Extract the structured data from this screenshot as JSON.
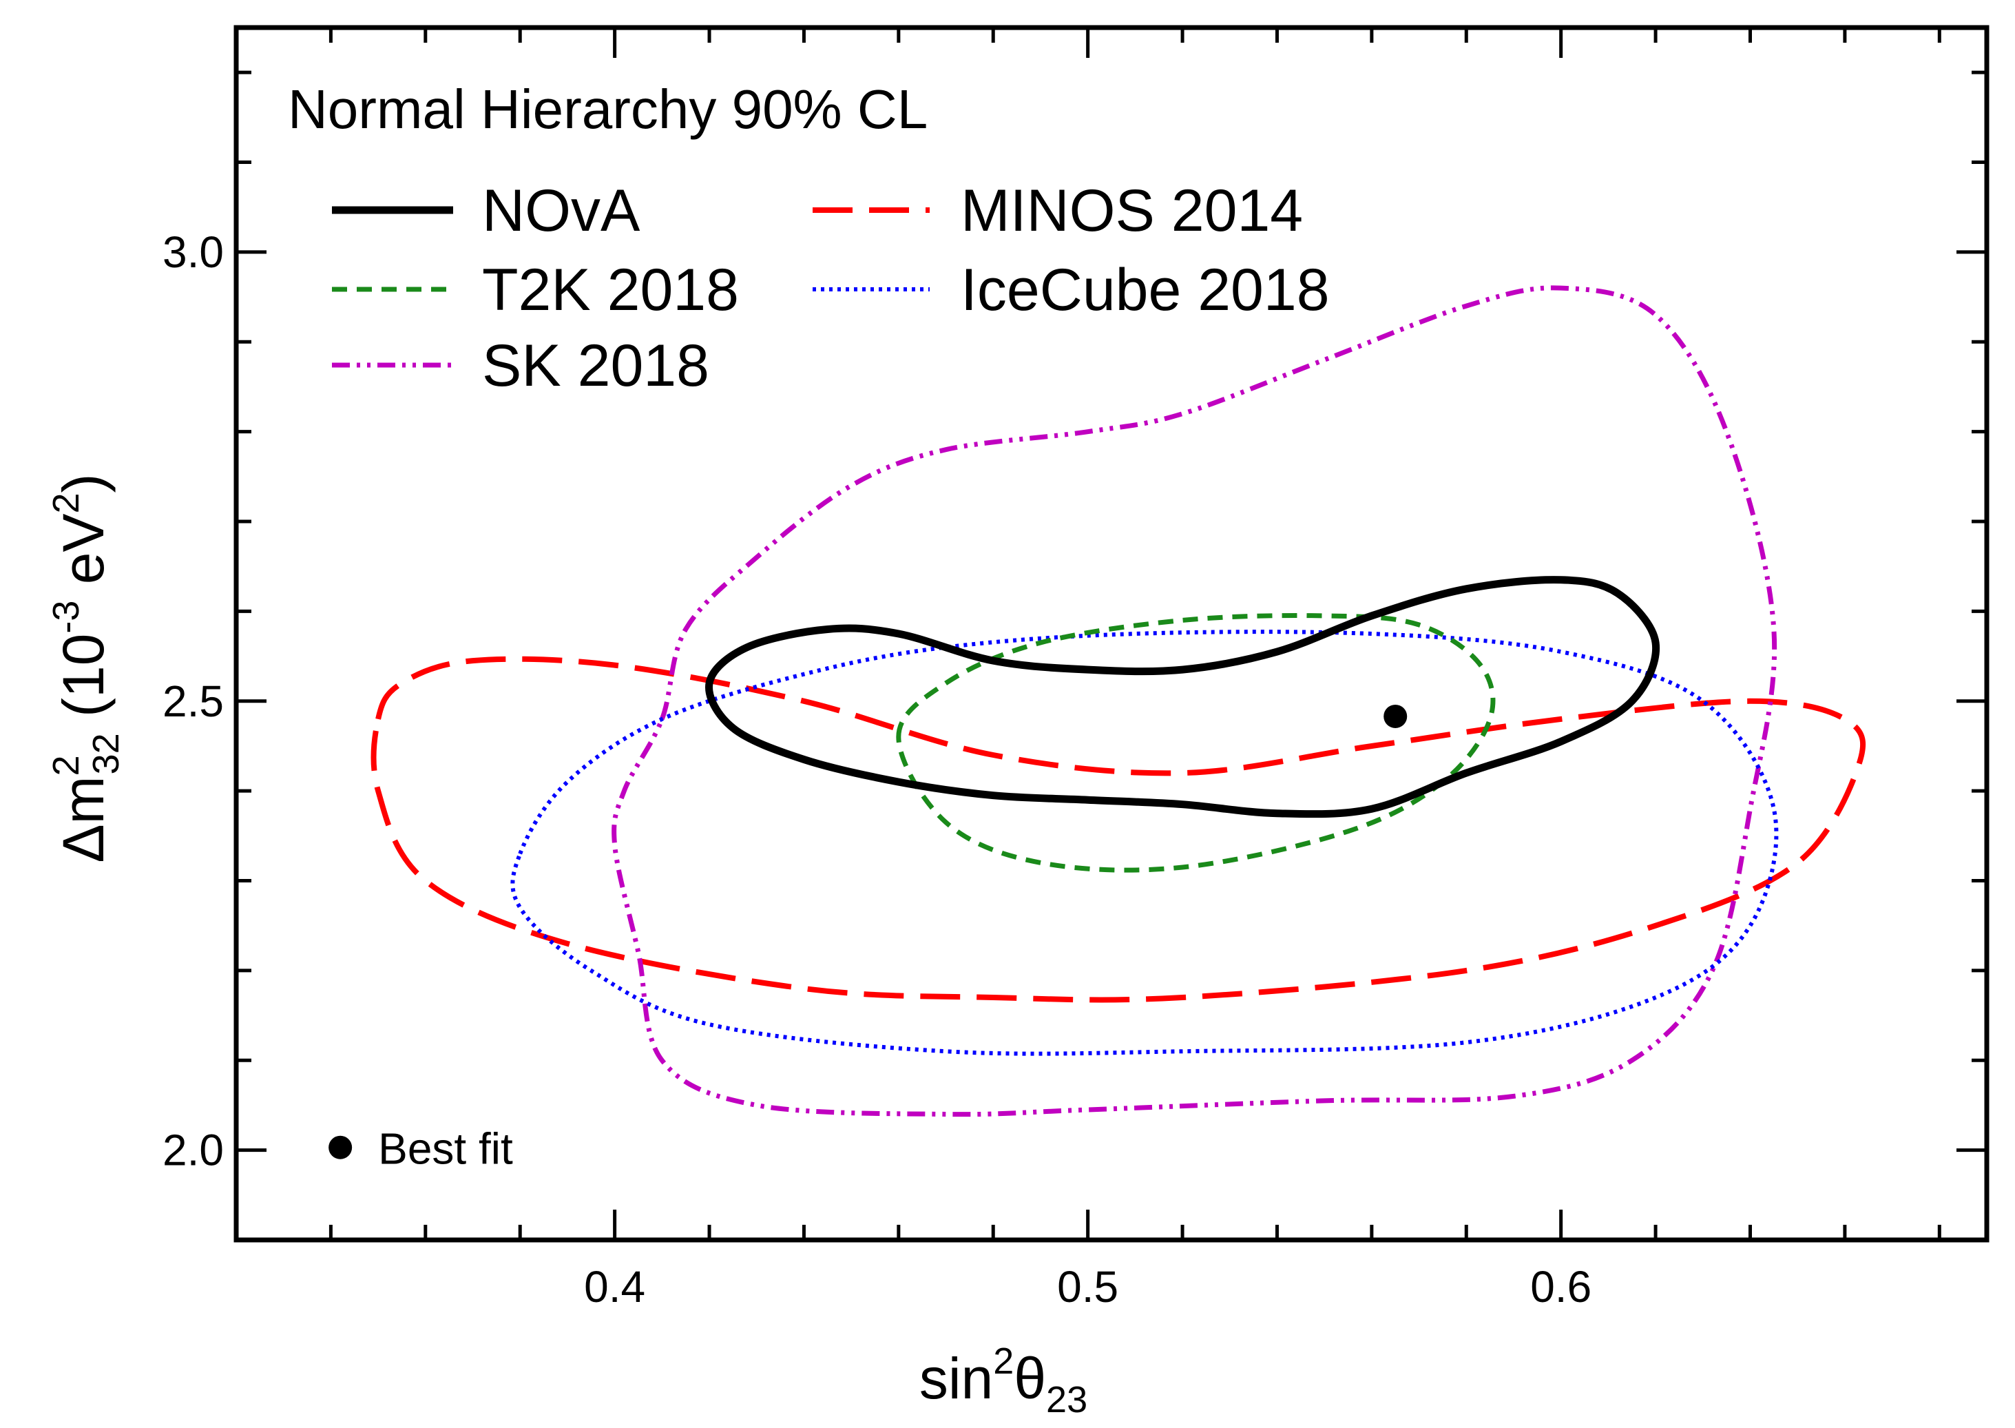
{
  "chart_data": {
    "type": "line",
    "title": "Normal Hierarchy 90% CL",
    "xlabel": {
      "base": "sin",
      "sup": "2",
      "theta": "θ",
      "sub": "23"
    },
    "ylabel": {
      "delta": "Δ",
      "m": "m",
      "sup": "2",
      "sub": "32",
      "units_open": " (10",
      "units_exp": "-3",
      "units_mid": " eV",
      "units_exp2": "2",
      "units_close": ")"
    },
    "xlim": [
      0.32,
      0.69
    ],
    "ylim": [
      1.9,
      3.25
    ],
    "x_ticks": [
      "0.4",
      "0.5",
      "0.6"
    ],
    "x_tick_values": [
      0.4,
      0.5,
      0.6
    ],
    "y_ticks": [
      "2.0",
      "2.5",
      "3.0"
    ],
    "y_tick_values": [
      2.0,
      2.5,
      3.0
    ],
    "x_minor_step": 0.02,
    "y_minor_step": 0.1,
    "grid": false,
    "legend_placement": "top-left",
    "series": [
      {
        "name": "NOvA",
        "color": "#000000",
        "style": "solid",
        "closed": true,
        "points": [
          [
            0.42,
            2.52
          ],
          [
            0.428,
            2.56
          ],
          [
            0.445,
            2.58
          ],
          [
            0.46,
            2.575
          ],
          [
            0.48,
            2.545
          ],
          [
            0.5,
            2.535
          ],
          [
            0.52,
            2.535
          ],
          [
            0.54,
            2.555
          ],
          [
            0.56,
            2.595
          ],
          [
            0.58,
            2.625
          ],
          [
            0.6,
            2.635
          ],
          [
            0.612,
            2.62
          ],
          [
            0.62,
            2.565
          ],
          [
            0.615,
            2.5
          ],
          [
            0.6,
            2.455
          ],
          [
            0.58,
            2.42
          ],
          [
            0.56,
            2.38
          ],
          [
            0.54,
            2.375
          ],
          [
            0.52,
            2.385
          ],
          [
            0.5,
            2.39
          ],
          [
            0.48,
            2.395
          ],
          [
            0.46,
            2.41
          ],
          [
            0.44,
            2.435
          ],
          [
            0.425,
            2.47
          ]
        ]
      },
      {
        "name": "T2K 2018",
        "color": "#1a8a1a",
        "style": "dashed",
        "closed": true,
        "points": [
          [
            0.46,
            2.46
          ],
          [
            0.47,
            2.52
          ],
          [
            0.49,
            2.565
          ],
          [
            0.52,
            2.59
          ],
          [
            0.55,
            2.595
          ],
          [
            0.57,
            2.585
          ],
          [
            0.583,
            2.54
          ],
          [
            0.585,
            2.48
          ],
          [
            0.575,
            2.41
          ],
          [
            0.555,
            2.355
          ],
          [
            0.52,
            2.315
          ],
          [
            0.49,
            2.32
          ],
          [
            0.47,
            2.365
          ]
        ]
      },
      {
        "name": "SK 2018",
        "color": "#c000c0",
        "style": "dash-dot-dot",
        "closed": true,
        "points": [
          [
            0.41,
            2.48
          ],
          [
            0.415,
            2.58
          ],
          [
            0.43,
            2.66
          ],
          [
            0.45,
            2.74
          ],
          [
            0.47,
            2.78
          ],
          [
            0.5,
            2.8
          ],
          [
            0.52,
            2.82
          ],
          [
            0.55,
            2.88
          ],
          [
            0.58,
            2.94
          ],
          [
            0.6,
            2.96
          ],
          [
            0.62,
            2.93
          ],
          [
            0.635,
            2.8
          ],
          [
            0.645,
            2.58
          ],
          [
            0.64,
            2.38
          ],
          [
            0.632,
            2.2
          ],
          [
            0.615,
            2.1
          ],
          [
            0.59,
            2.06
          ],
          [
            0.55,
            2.055
          ],
          [
            0.5,
            2.045
          ],
          [
            0.47,
            2.04
          ],
          [
            0.43,
            2.05
          ],
          [
            0.41,
            2.1
          ],
          [
            0.405,
            2.22
          ],
          [
            0.4,
            2.34
          ],
          [
            0.402,
            2.4
          ]
        ]
      },
      {
        "name": "MINOS 2014",
        "color": "#ff0000",
        "style": "long-dashed",
        "closed": true,
        "points": [
          [
            0.35,
            2.48
          ],
          [
            0.355,
            2.52
          ],
          [
            0.37,
            2.545
          ],
          [
            0.4,
            2.54
          ],
          [
            0.44,
            2.5
          ],
          [
            0.48,
            2.44
          ],
          [
            0.52,
            2.42
          ],
          [
            0.56,
            2.45
          ],
          [
            0.6,
            2.48
          ],
          [
            0.64,
            2.5
          ],
          [
            0.66,
            2.48
          ],
          [
            0.663,
            2.43
          ],
          [
            0.65,
            2.32
          ],
          [
            0.62,
            2.25
          ],
          [
            0.58,
            2.2
          ],
          [
            0.52,
            2.17
          ],
          [
            0.48,
            2.17
          ],
          [
            0.44,
            2.18
          ],
          [
            0.39,
            2.23
          ],
          [
            0.36,
            2.3
          ],
          [
            0.35,
            2.4
          ]
        ]
      },
      {
        "name": "IceCube 2018",
        "color": "#0000ff",
        "style": "dotted",
        "closed": true,
        "points": [
          [
            0.38,
            2.33
          ],
          [
            0.39,
            2.41
          ],
          [
            0.41,
            2.48
          ],
          [
            0.44,
            2.53
          ],
          [
            0.47,
            2.56
          ],
          [
            0.51,
            2.575
          ],
          [
            0.56,
            2.575
          ],
          [
            0.6,
            2.555
          ],
          [
            0.63,
            2.5
          ],
          [
            0.645,
            2.38
          ],
          [
            0.64,
            2.25
          ],
          [
            0.62,
            2.17
          ],
          [
            0.58,
            2.12
          ],
          [
            0.52,
            2.11
          ],
          [
            0.47,
            2.11
          ],
          [
            0.42,
            2.14
          ],
          [
            0.395,
            2.2
          ],
          [
            0.38,
            2.27
          ]
        ]
      }
    ],
    "best_fit": {
      "label": "Best fit",
      "x": 0.565,
      "y": 2.483,
      "legend_x": 0.342,
      "legend_y": 2.003
    }
  }
}
